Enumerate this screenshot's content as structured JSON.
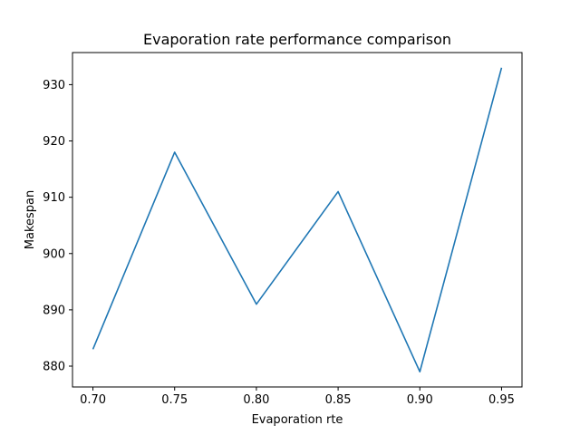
{
  "chart_data": {
    "type": "line",
    "title": "Evaporation rate performance comparison",
    "xlabel": "Evaporation rte",
    "ylabel": "Makespan",
    "x": [
      0.7,
      0.75,
      0.8,
      0.85,
      0.9,
      0.95
    ],
    "series": [
      {
        "values": [
          883,
          918,
          891,
          911,
          879,
          933
        ],
        "color": "#1f77b4"
      }
    ],
    "xlim": [
      0.6875,
      0.9625
    ],
    "ylim": [
      876.3,
      935.7
    ],
    "xticks": [
      0.7,
      0.75,
      0.8,
      0.85,
      0.9,
      0.95
    ],
    "xtick_labels": [
      "0.70",
      "0.75",
      "0.80",
      "0.85",
      "0.90",
      "0.95"
    ],
    "yticks": [
      880,
      890,
      900,
      910,
      920,
      930
    ],
    "ytick_labels": [
      "880",
      "890",
      "900",
      "910",
      "920",
      "930"
    ],
    "grid": false,
    "legend": "none"
  }
}
